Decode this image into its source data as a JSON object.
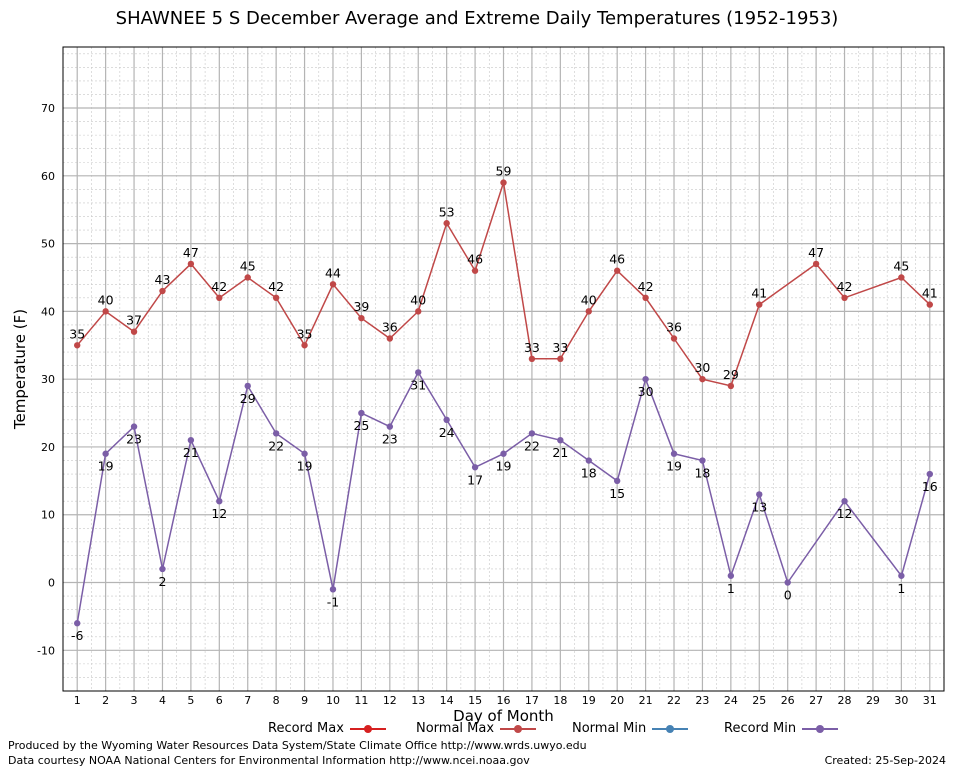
{
  "title": "SHAWNEE 5 S December Average and Extreme Daily Temperatures (1952-1953)",
  "footer": {
    "produced_by": "Produced by the Wyoming Water Resources Data System/State Climate Office http://www.wrds.uwyo.edu",
    "courtesy": "Data courtesy NOAA National Centers for Environmental Information http://www.ncei.noaa.gov",
    "created": "Created:  25-Sep-2024"
  },
  "legend": [
    {
      "label": "Record Max",
      "color": "#d62020"
    },
    {
      "label": "Normal Max",
      "color": "#c04848"
    },
    {
      "label": "Normal Min",
      "color": "#4682b4"
    },
    {
      "label": "Record Min",
      "color": "#7b5ea7"
    }
  ],
  "chart_data": {
    "type": "line",
    "title": "SHAWNEE 5 S December Average and Extreme Daily Temperatures (1952-1953)",
    "xlabel": "Day of Month",
    "ylabel": "Temperature (F)",
    "xlim": [
      0.5,
      31.5
    ],
    "ylim": [
      -16,
      79
    ],
    "y_ticks": [
      -10,
      0,
      10,
      20,
      30,
      40,
      50,
      60,
      70
    ],
    "x_ticks": [
      1,
      2,
      3,
      4,
      5,
      6,
      7,
      8,
      9,
      10,
      11,
      12,
      13,
      14,
      15,
      16,
      17,
      18,
      19,
      20,
      21,
      22,
      23,
      24,
      25,
      26,
      27,
      28,
      29,
      30,
      31
    ],
    "grid": true,
    "legend_position": "bottom",
    "series": [
      {
        "name": "Record Max",
        "color": "#c04848",
        "points": [
          [
            1,
            35
          ],
          [
            2,
            40
          ],
          [
            3,
            37
          ],
          [
            4,
            43
          ],
          [
            5,
            47
          ],
          [
            6,
            42
          ],
          [
            7,
            45
          ],
          [
            8,
            42
          ],
          [
            9,
            35
          ],
          [
            10,
            44
          ],
          [
            11,
            39
          ],
          [
            12,
            36
          ],
          [
            13,
            40
          ],
          [
            14,
            53
          ],
          [
            15,
            46
          ],
          [
            16,
            59
          ],
          [
            17,
            33
          ],
          [
            18,
            33
          ],
          [
            19,
            40
          ],
          [
            20,
            46
          ],
          [
            21,
            42
          ],
          [
            22,
            36
          ],
          [
            23,
            30
          ],
          [
            24,
            29
          ],
          [
            25,
            41
          ],
          [
            27,
            47
          ],
          [
            28,
            42
          ],
          [
            30,
            45
          ],
          [
            31,
            41
          ]
        ]
      },
      {
        "name": "Record Min",
        "color": "#7b5ea7",
        "points": [
          [
            1,
            -6
          ],
          [
            2,
            19
          ],
          [
            3,
            23
          ],
          [
            4,
            2
          ],
          [
            5,
            21
          ],
          [
            6,
            12
          ],
          [
            7,
            29
          ],
          [
            8,
            22
          ],
          [
            9,
            19
          ],
          [
            10,
            -1
          ],
          [
            11,
            25
          ],
          [
            12,
            23
          ],
          [
            13,
            31
          ],
          [
            14,
            24
          ],
          [
            15,
            17
          ],
          [
            16,
            19
          ],
          [
            17,
            22
          ],
          [
            18,
            21
          ],
          [
            19,
            18
          ],
          [
            20,
            15
          ],
          [
            21,
            30
          ],
          [
            22,
            19
          ],
          [
            23,
            18
          ],
          [
            24,
            1
          ],
          [
            25,
            13
          ],
          [
            26,
            0
          ],
          [
            28,
            12
          ],
          [
            30,
            1
          ],
          [
            31,
            16
          ]
        ]
      }
    ]
  }
}
